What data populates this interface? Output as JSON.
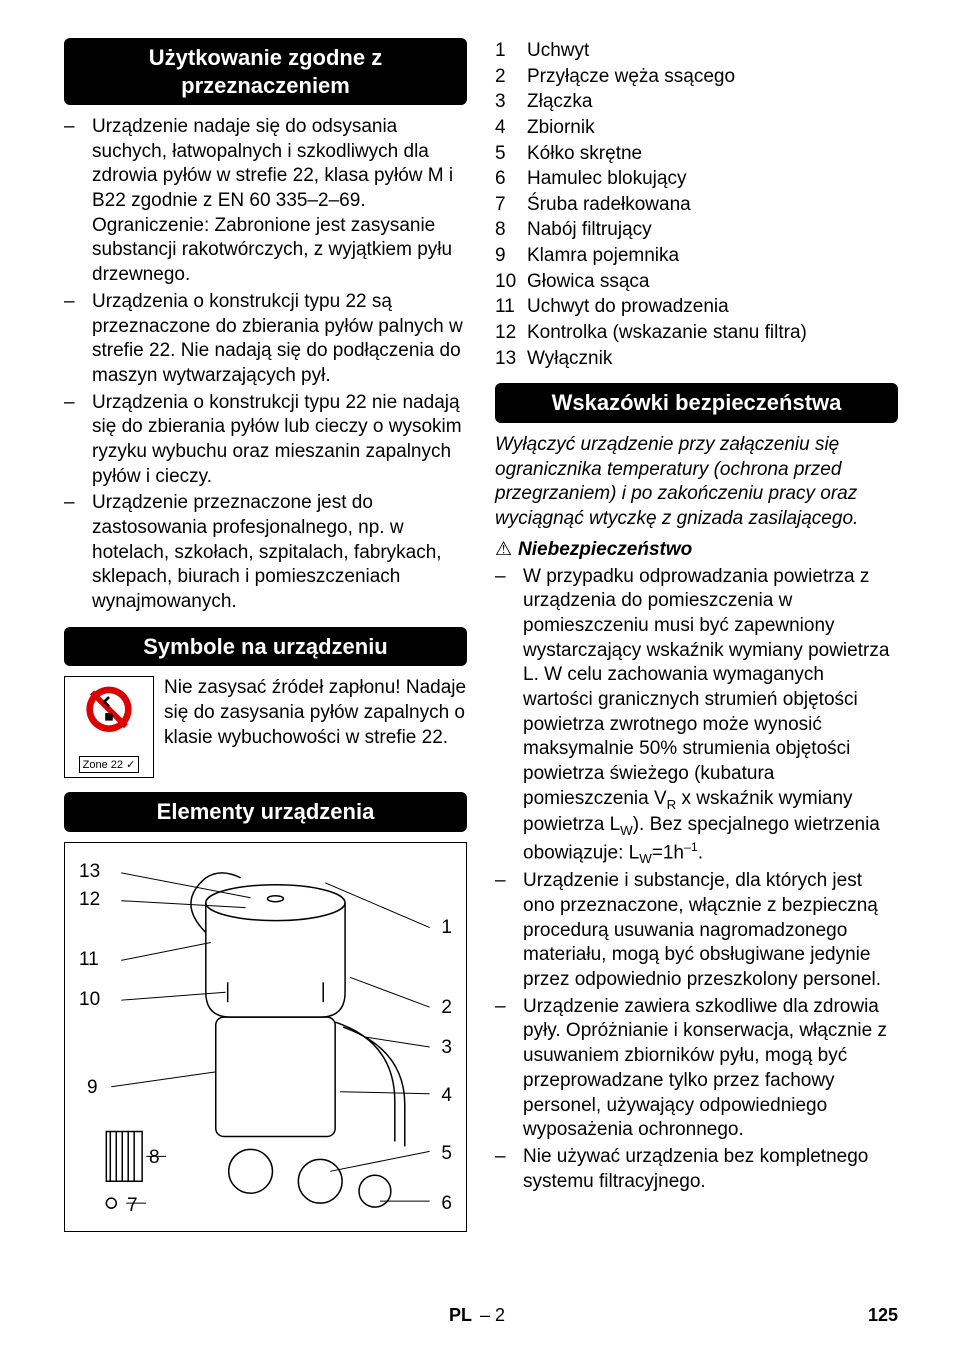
{
  "left": {
    "h1": "Użytkowanie zgodne z przeznaczeniem",
    "intended_use": [
      "Urządzenie nadaje się do odsysania suchych, łatwopalnych i szkodliwych dla zdrowia pyłów w strefie 22, klasa pyłów M i B22 zgodnie z EN 60 335–2–69. Ograniczenie: Zabronione jest zasysanie substancji rakotwórczych, z wyjątkiem pyłu drzewnego.",
      "Urządzenia o konstrukcji typu 22 są przeznaczone do zbierania pyłów palnych w strefie 22. Nie nadają się do podłączenia do maszyn wytwarzających pył.",
      "Urządzenia o konstrukcji typu 22 nie nadają się do zbierania pyłów lub cieczy o wysokim ryzyku wybuchu oraz mieszanin zapalnych pyłów i cieczy.",
      "Urządzenie przeznaczone jest do zastosowania profesjonalnego, np. w hotelach, szkołach, szpitalach, fabrykach, sklepach, biurach i pomieszczeniach wynajmowanych."
    ],
    "h2": "Symbole na urządzeniu",
    "symbol_text": "Nie zasysać źródeł zapłonu! Nadaje się do zasysania pyłów zapalnych o klasie wybuchowości w strefie 22.",
    "zone_label": "Zone 22 ✓",
    "h3": "Elementy urządzenia",
    "callouts_left": [
      "13",
      "12",
      "11",
      "10",
      "9",
      "8",
      "7"
    ],
    "callouts_right": [
      "1",
      "2",
      "3",
      "4",
      "5",
      "6"
    ]
  },
  "right": {
    "parts": [
      "Uchwyt",
      "Przyłącze węża ssącego",
      "Złączka",
      "Zbiornik",
      "Kółko skrętne",
      "Hamulec blokujący",
      "Śruba radełkowana",
      "Nabój filtrujący",
      "Klamra pojemnika",
      "Głowica ssąca",
      "Uchwyt do prowadzenia",
      "Kontrolka (wskazanie stanu filtra)",
      "Wyłącznik"
    ],
    "h2": "Wskazówki bezpieczeństwa",
    "safety_intro": "Wyłączyć urządzenie przy załączeniu się ogranicznika temperatury (ochrona przed przegrzaniem) i po zakończeniu pracy oraz wyciągnąć wtyczkę z gnizada zasilającego.",
    "danger_label": "Niebezpieczeństwo",
    "danger_list": [
      "W przypadku odprowadzania powietrza z urządzenia do pomieszczenia w pomieszczeniu musi być zapewniony wystarczający wskaźnik wymiany powietrza L. W celu zachowania wymaganych wartości granicznych strumień objętości powietrza zwrotnego może wynosić maksymalnie 50% strumienia objętości powietrza świeżego (kubatura pomieszczenia V<sub>R</sub> x wskaźnik wymiany powietrza L<sub>W</sub>). Bez specjalnego wietrzenia obowiązuje: L<sub>W</sub>=1h<sup>–1</sup>.",
      "Urządzenie i substancje, dla których jest ono przeznaczone, włącznie z bezpieczną procedurą usuwania nagromadzonego materiału, mogą być obsługiwane jedynie przez odpowiednio przeszkolony personel.",
      "Urządzenie zawiera szkodliwe dla zdrowia pyły. Opróżnianie i konserwacja, włącznie z usuwaniem zbiorników pyłu, mogą być przeprowadzane tylko przez fachowy personel, używający odpowiedniego wyposażenia ochronnego.",
      "Nie używać urządzenia bez kompletnego systemu filtracyjnego."
    ]
  },
  "footer": {
    "lang": "PL",
    "section": "– 2",
    "page": "125"
  }
}
